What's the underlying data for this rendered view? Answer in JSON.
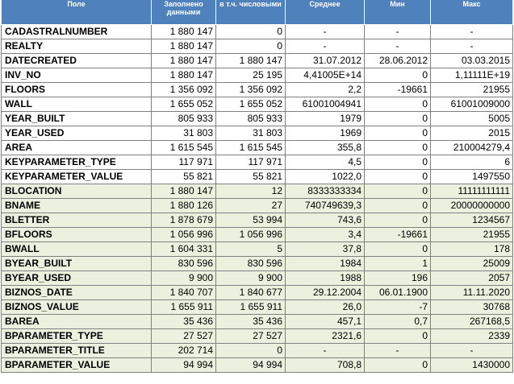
{
  "columns": [
    "Поле",
    "Заполнено данными",
    "в т.ч. числовыми",
    "Среднее",
    "Мин",
    "Макс"
  ],
  "rows": [
    {
      "group": "plain",
      "cells": [
        "CADASTRALNUMBER",
        "1 880 147",
        "0",
        "-",
        "-",
        "-"
      ]
    },
    {
      "group": "plain",
      "cells": [
        "REALTY",
        "1 880 147",
        "0",
        "-",
        "-",
        "-"
      ]
    },
    {
      "group": "plain",
      "cells": [
        "DATECREATED",
        "1 880 147",
        "1 880 147",
        "31.07.2012",
        "28.06.2012",
        "03.03.2015"
      ]
    },
    {
      "group": "plain",
      "cells": [
        "INV_NO",
        "1 880 147",
        "25 195",
        "4,41005E+14",
        "0",
        "1,11111E+19"
      ]
    },
    {
      "group": "plain",
      "cells": [
        "FLOORS",
        "1 356 092",
        "1 356 092",
        "2,2",
        "-19661",
        "21955"
      ]
    },
    {
      "group": "plain",
      "cells": [
        "WALL",
        "1 655 052",
        "1 655 052",
        "61001004941",
        "0",
        "61001009000"
      ]
    },
    {
      "group": "plain",
      "cells": [
        "YEAR_BUILT",
        "805 933",
        "805 933",
        "1979",
        "0",
        "5005"
      ]
    },
    {
      "group": "plain",
      "cells": [
        "YEAR_USED",
        "31 803",
        "31 803",
        "1969",
        "0",
        "2015"
      ]
    },
    {
      "group": "plain",
      "cells": [
        "AREA",
        "1 615 545",
        "1 615 545",
        "355,8",
        "0",
        "210004279,4"
      ]
    },
    {
      "group": "plain",
      "cells": [
        "KEYPARAMETER_TYPE",
        "117 971",
        "117 971",
        "4,5",
        "0",
        "6"
      ]
    },
    {
      "group": "plain",
      "cells": [
        "KEYPARAMETER_VALUE",
        "55 821",
        "55 821",
        "1022,0",
        "0",
        "1497550"
      ]
    },
    {
      "group": "alt",
      "cells": [
        "BLOCATION",
        "1 880 147",
        "12",
        "8333333334",
        "0",
        "11111111111"
      ]
    },
    {
      "group": "alt",
      "cells": [
        "BNAME",
        "1 880 126",
        "27",
        "740749639,3",
        "0",
        "20000000000"
      ]
    },
    {
      "group": "alt",
      "cells": [
        "BLETTER",
        "1 878 679",
        "53 994",
        "743,6",
        "0",
        "1234567"
      ]
    },
    {
      "group": "alt",
      "cells": [
        "BFLOORS",
        "1 056 996",
        "1 056 996",
        "3,4",
        "-19661",
        "21955"
      ]
    },
    {
      "group": "alt",
      "cells": [
        "BWALL",
        "1 604 331",
        "5",
        "37,8",
        "0",
        "178"
      ]
    },
    {
      "group": "alt",
      "cells": [
        "BYEAR_BUILT",
        "830 596",
        "830 596",
        "1984",
        "1",
        "25009"
      ]
    },
    {
      "group": "alt",
      "cells": [
        "BYEAR_USED",
        "9 900",
        "9 900",
        "1988",
        "196",
        "2057"
      ]
    },
    {
      "group": "alt",
      "cells": [
        "BIZNOS_DATE",
        "1 840 707",
        "1 840 677",
        "29.12.2004",
        "06.01.1900",
        "11.11.2020"
      ]
    },
    {
      "group": "alt",
      "cells": [
        "BIZNOS_VALUE",
        "1 655 911",
        "1 655 911",
        "26,0",
        "-7",
        "30768"
      ]
    },
    {
      "group": "alt",
      "cells": [
        "BAREA",
        "35 436",
        "35 436",
        "457,1",
        "0,7",
        "267168,5"
      ]
    },
    {
      "group": "alt",
      "cells": [
        "BPARAMETER_TYPE",
        "27 527",
        "27 527",
        "2321,6",
        "0",
        "2339"
      ]
    },
    {
      "group": "alt",
      "cells": [
        "BPARAMETER_TITLE",
        "202 714",
        "0",
        "-",
        "-",
        "-"
      ]
    },
    {
      "group": "alt",
      "cells": [
        "BPARAMETER_VALUE",
        "94 994",
        "94 994",
        "708,8",
        "0",
        "1430000"
      ]
    }
  ],
  "colors": {
    "header_bg": "#4f81bd",
    "header_text": "#ffffff",
    "alt_row_bg": "#ebf1de",
    "border": "#808080"
  }
}
